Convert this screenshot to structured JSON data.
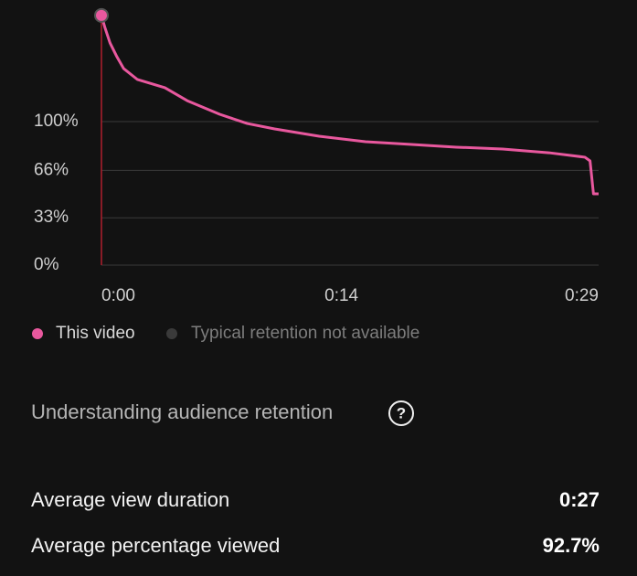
{
  "chart_data": {
    "type": "line",
    "x": [
      0,
      0.2,
      0.5,
      0.9,
      1.3,
      2.1,
      3.7,
      5.0,
      6.9,
      8.5,
      10.1,
      12.7,
      15.4,
      18.1,
      20.7,
      23.4,
      26.1,
      28.2,
      28.5,
      28.7,
      29
    ],
    "series": [
      {
        "name": "This video",
        "color": "#e8589e",
        "values": [
          174,
          165.6,
          154.8,
          145.2,
          136.9,
          129.3,
          123.6,
          114.6,
          105.1,
          98.7,
          94.9,
          89.8,
          86.0,
          84.1,
          82.2,
          80.9,
          78.3,
          75.2,
          72.6,
          49.7,
          49.7
        ]
      }
    ],
    "unavailable_series": {
      "name": "Typical retention not available",
      "color": "#3a3a3a"
    },
    "xlim": [
      0,
      29
    ],
    "xticks": [
      {
        "value": 0,
        "label": "0:00"
      },
      {
        "value": 14,
        "label": "0:14"
      },
      {
        "value": 29,
        "label": "0:29"
      }
    ],
    "ylim": [
      0,
      180
    ],
    "yticks": [
      {
        "value": 0,
        "label": "0%"
      },
      {
        "value": 33,
        "label": "33%"
      },
      {
        "value": 66,
        "label": "66%"
      },
      {
        "value": 100,
        "label": "100%"
      }
    ],
    "grid": true
  },
  "help_link": {
    "label": "Understanding audience retention",
    "icon": "?"
  },
  "stats": [
    {
      "label": "Average view duration",
      "value": "0:27"
    },
    {
      "label": "Average percentage viewed",
      "value": "92.7%"
    }
  ]
}
